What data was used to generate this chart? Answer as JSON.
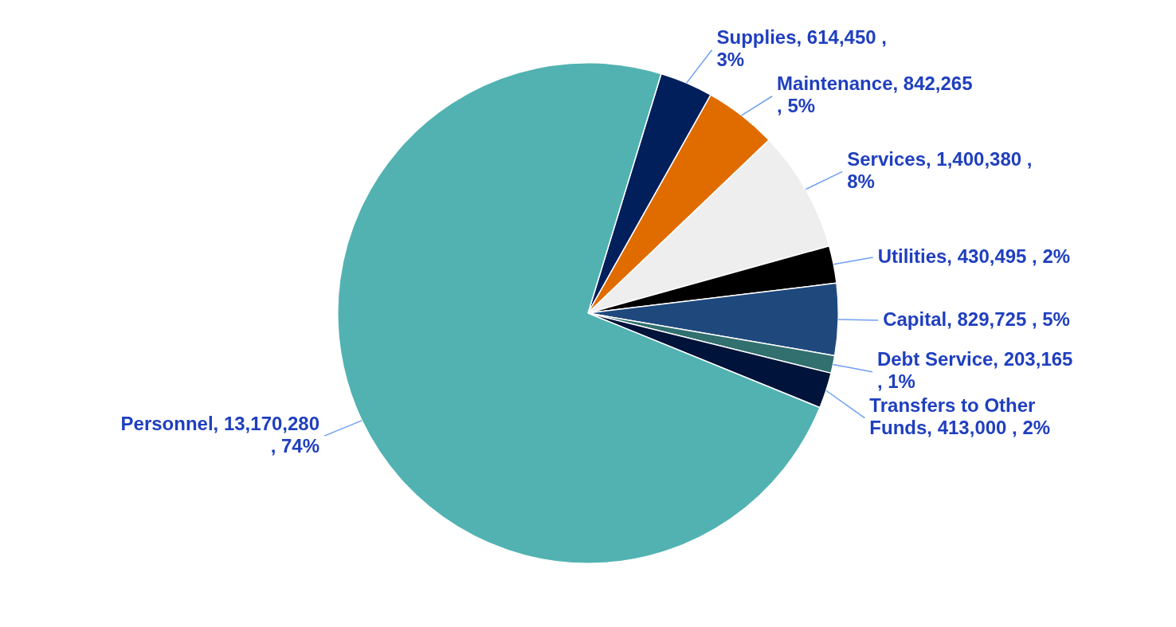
{
  "chart_data": {
    "type": "pie",
    "categories": [
      "Supplies",
      "Maintenance",
      "Services",
      "Utilities",
      "Capital",
      "Debt Service",
      "Transfers to Other Funds",
      "Personnel"
    ],
    "values": [
      614450,
      842265,
      1400380,
      430495,
      829725,
      203165,
      413000,
      13170280
    ],
    "colors": [
      "#001f5b",
      "#e06c00",
      "#eeeeee",
      "#000000",
      "#1f497d",
      "#31706f",
      "#00133a",
      "#52b2b2"
    ],
    "value_labels": [
      ", 614,450 , 3%",
      ", 842,265 , 5%",
      ", 1,400,380 , 8%",
      ", 430,495 , 2%",
      ", 829,725 , 5%",
      ", 203,165 , 1%",
      ", 413,000 , 2%",
      ", 13,170,280 , 74%"
    ],
    "legend": false
  }
}
